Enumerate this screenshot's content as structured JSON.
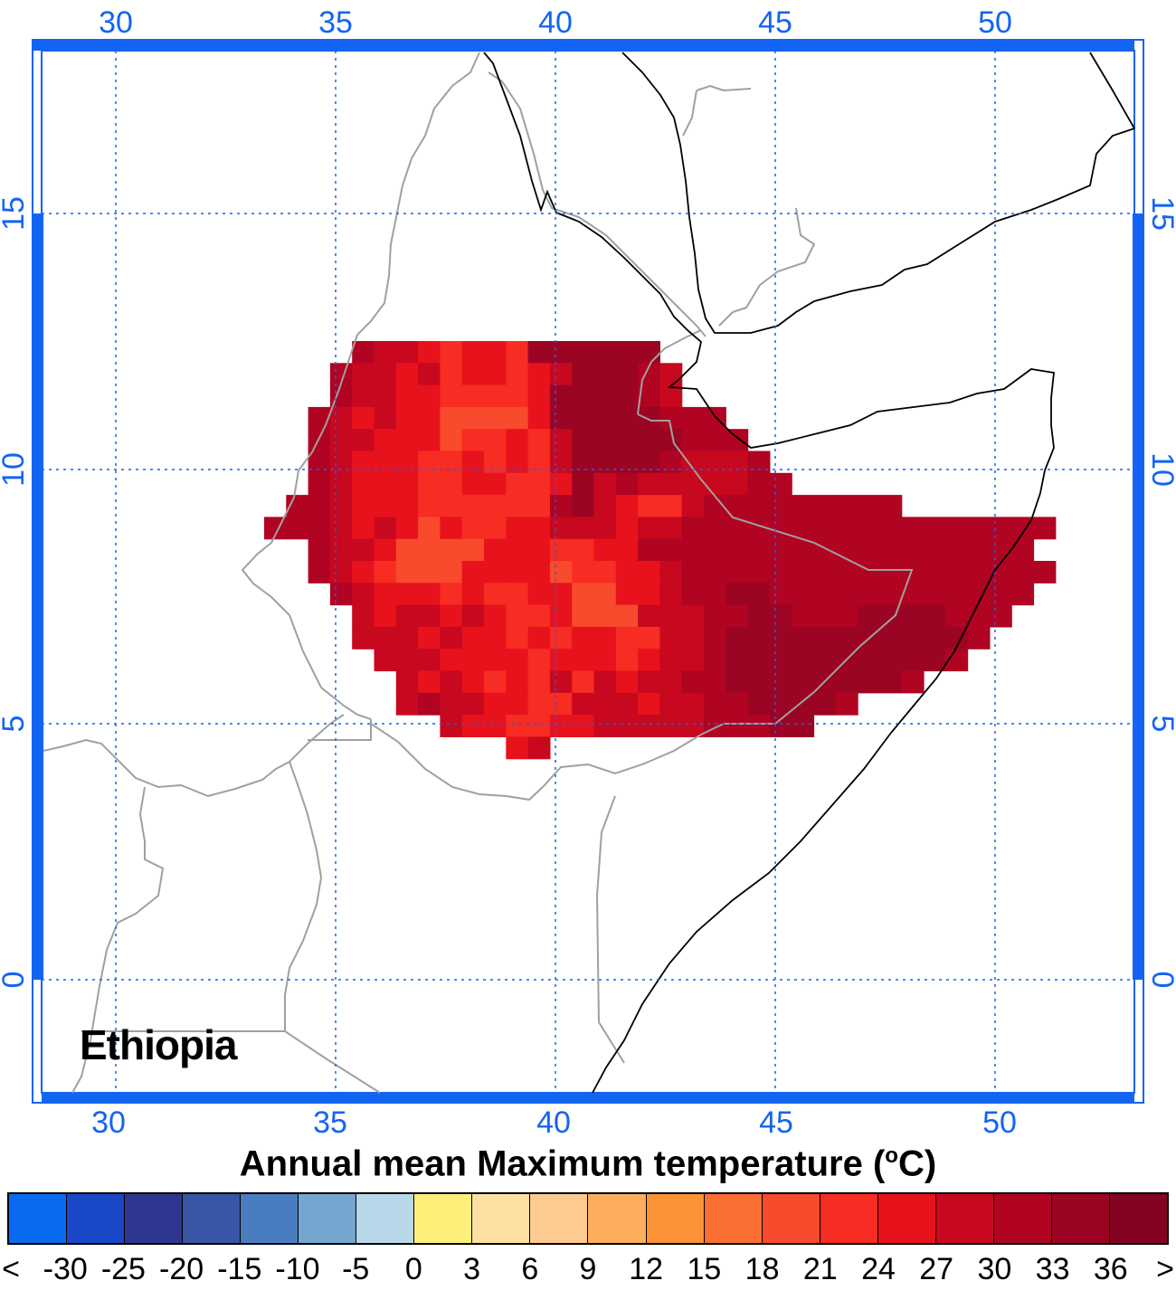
{
  "map": {
    "country": "Ethiopia",
    "lon_ticks": [
      "30",
      "35",
      "40",
      "45",
      "50"
    ],
    "lat_ticks": [
      "15",
      "10",
      "5",
      "0"
    ],
    "frame_color": "#1464f4",
    "grid_color": "#1464f4"
  },
  "legend": {
    "title_main": "Annual mean Maximum temperature (",
    "title_sup": "o",
    "title_end": "C)",
    "tick_labels": [
      "<",
      "-30",
      "-25",
      "-20",
      "-15",
      "-10",
      "-5",
      "0",
      "3",
      "6",
      "9",
      "12",
      "15",
      "18",
      "21",
      "24",
      "27",
      "30",
      "33",
      "36",
      ">"
    ],
    "colors": [
      "#0a6af0",
      "#1a46c8",
      "#2e3690",
      "#3a56a6",
      "#4a7cc0",
      "#74a6d0",
      "#b8d8ea",
      "#fdf07a",
      "#fde0a2",
      "#fdca90",
      "#fcae5c",
      "#fb9236",
      "#fa6e34",
      "#f84a2c",
      "#f72c22",
      "#e8121c",
      "#c8081e",
      "#b00422",
      "#9c0424",
      "#840222"
    ]
  }
}
